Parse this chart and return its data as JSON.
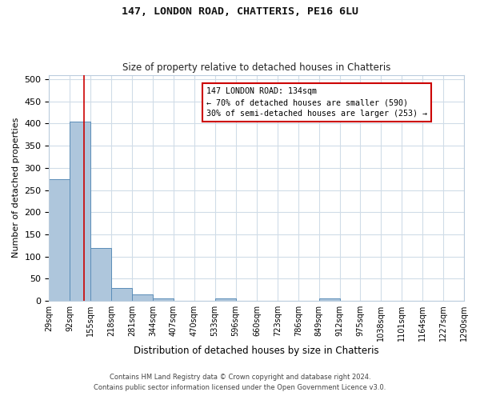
{
  "title1": "147, LONDON ROAD, CHATTERIS, PE16 6LU",
  "title2": "Size of property relative to detached houses in Chatteris",
  "xlabel": "Distribution of detached houses by size in Chatteris",
  "ylabel": "Number of detached properties",
  "bin_edges": [
    29,
    92,
    155,
    218,
    281,
    344,
    407,
    470,
    533,
    596,
    660,
    723,
    786,
    849,
    912,
    975,
    1038,
    1101,
    1164,
    1227,
    1290
  ],
  "bar_heights": [
    275,
    405,
    120,
    28,
    14,
    5,
    0,
    0,
    5,
    0,
    0,
    0,
    0,
    5,
    0,
    0,
    0,
    0,
    0,
    0
  ],
  "bar_color": "#aec6dc",
  "bar_edge_color": "#5b8db8",
  "grid_color": "#d0dce8",
  "background_color": "#ffffff",
  "property_size": 134,
  "annotation_line1": "147 LONDON ROAD: 134sqm",
  "annotation_line2": "← 70% of detached houses are smaller (590)",
  "annotation_line3": "30% of semi-detached houses are larger (253) →",
  "vline_color": "#cc0000",
  "box_color": "#cc0000",
  "ylim": [
    0,
    510
  ],
  "yticks": [
    0,
    50,
    100,
    150,
    200,
    250,
    300,
    350,
    400,
    450,
    500
  ],
  "footer1": "Contains HM Land Registry data © Crown copyright and database right 2024.",
  "footer2": "Contains public sector information licensed under the Open Government Licence v3.0."
}
